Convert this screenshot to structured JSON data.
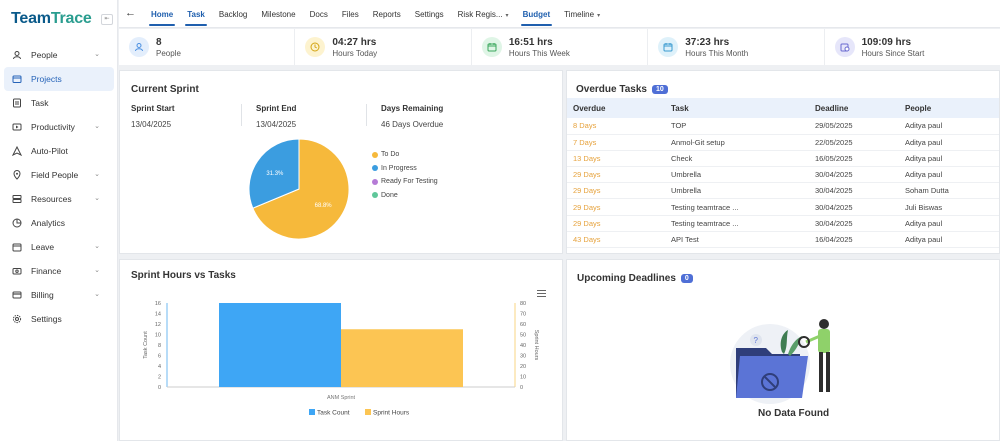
{
  "brand": {
    "name_part1": "Team",
    "name_part2": "Trace"
  },
  "sidebar": {
    "items": [
      {
        "label": "People",
        "icon": "people-icon",
        "chevron": true,
        "active": false
      },
      {
        "label": "Projects",
        "icon": "projects-icon",
        "chevron": false,
        "active": true
      },
      {
        "label": "Task",
        "icon": "task-icon",
        "chevron": false,
        "active": false
      },
      {
        "label": "Productivity",
        "icon": "productivity-icon",
        "chevron": true,
        "active": false
      },
      {
        "label": "Auto-Pilot",
        "icon": "autopilot-icon",
        "chevron": false,
        "active": false
      },
      {
        "label": "Field People",
        "icon": "field-people-icon",
        "chevron": true,
        "active": false
      },
      {
        "label": "Resources",
        "icon": "resources-icon",
        "chevron": true,
        "active": false
      },
      {
        "label": "Analytics",
        "icon": "analytics-icon",
        "chevron": false,
        "active": false
      },
      {
        "label": "Leave",
        "icon": "leave-icon",
        "chevron": true,
        "active": false
      },
      {
        "label": "Finance",
        "icon": "finance-icon",
        "chevron": true,
        "active": false
      },
      {
        "label": "Billing",
        "icon": "billing-icon",
        "chevron": true,
        "active": false
      },
      {
        "label": "Settings",
        "icon": "settings-icon",
        "chevron": false,
        "active": false
      }
    ]
  },
  "topbar": {
    "tabs": [
      {
        "label": "Home",
        "active": true,
        "dropdown": false
      },
      {
        "label": "Task",
        "active": true,
        "dropdown": false
      },
      {
        "label": "Backlog",
        "active": false,
        "dropdown": false
      },
      {
        "label": "Milestone",
        "active": false,
        "dropdown": false
      },
      {
        "label": "Docs",
        "active": false,
        "dropdown": false
      },
      {
        "label": "Files",
        "active": false,
        "dropdown": false
      },
      {
        "label": "Reports",
        "active": false,
        "dropdown": false
      },
      {
        "label": "Settings",
        "active": false,
        "dropdown": false
      },
      {
        "label": "Risk Regis...",
        "active": false,
        "dropdown": true
      },
      {
        "label": "Budget",
        "active": true,
        "dropdown": false
      },
      {
        "label": "Timeline",
        "active": false,
        "dropdown": true
      }
    ]
  },
  "stats": [
    {
      "value": "8",
      "label": "People",
      "icon": "people-icon",
      "bg": "#e3eefc",
      "fg": "#4a8fe0"
    },
    {
      "value": "04:27 hrs",
      "label": "Hours Today",
      "icon": "clock-icon",
      "bg": "#fdf3cf",
      "fg": "#d4a514"
    },
    {
      "value": "16:51 hrs",
      "label": "Hours This Week",
      "icon": "calendar-icon",
      "bg": "#dff5e6",
      "fg": "#3aa65c"
    },
    {
      "value": "37:23 hrs",
      "label": "Hours This Month",
      "icon": "calendar-icon",
      "bg": "#def1fa",
      "fg": "#3a9bd0"
    },
    {
      "value": "109:09 hrs",
      "label": "Hours Since Start",
      "icon": "calendar-clock-icon",
      "bg": "#e6e6fa",
      "fg": "#6a6ad0"
    }
  ],
  "current_sprint": {
    "title": "Current Sprint",
    "start_label": "Sprint Start",
    "start_value": "13/04/2025",
    "end_label": "Sprint End",
    "end_value": "13/04/2025",
    "remaining_label": "Days Remaining",
    "remaining_value": "46 Days Overdue",
    "pie": {
      "slices": [
        {
          "label": "To Do",
          "value": 68.8,
          "text": "68.8%",
          "color": "#f6b93b"
        },
        {
          "label": "In Progress",
          "value": 31.3,
          "text": "31.3%",
          "color": "#3b9de0"
        },
        {
          "label": "Ready For Testing",
          "value": 0,
          "text": "",
          "color": "#b57bd6"
        },
        {
          "label": "Done",
          "value": 0,
          "text": "",
          "color": "#5fc79a"
        }
      ]
    }
  },
  "overdue": {
    "title": "Overdue Tasks",
    "count": "10",
    "columns": [
      "Overdue",
      "Task",
      "Deadline",
      "People"
    ],
    "rows": [
      [
        "8 Days",
        "TOP",
        "29/05/2025",
        "Aditya paul"
      ],
      [
        "7 Days",
        "Anmol-Git setup",
        "22/05/2025",
        "Aditya paul"
      ],
      [
        "13 Days",
        "Check",
        "16/05/2025",
        "Aditya paul"
      ],
      [
        "29 Days",
        "Umbrella",
        "30/04/2025",
        "Aditya paul"
      ],
      [
        "29 Days",
        "Umbrella",
        "30/04/2025",
        "Soham Dutta"
      ],
      [
        "29 Days",
        "Testing teamtrace ...",
        "30/04/2025",
        "Juli Biswas"
      ],
      [
        "29 Days",
        "Testing teamtrace ...",
        "30/04/2025",
        "Aditya paul"
      ],
      [
        "43 Days",
        "API Test",
        "16/04/2025",
        "Aditya paul"
      ]
    ]
  },
  "sprint_chart": {
    "title": "Sprint Hours vs Tasks"
  },
  "chart_data": {
    "type": "bar",
    "categories": [
      "ANM Sprint"
    ],
    "series": [
      {
        "name": "Task Count",
        "values": [
          16
        ],
        "color": "#3ea6f5",
        "axis": "left"
      },
      {
        "name": "Sprint Hours",
        "values": [
          55
        ],
        "color": "#fcc553",
        "axis": "right"
      }
    ],
    "ylabel": "Task Count",
    "y2label": "Sprint Hours",
    "ylim": [
      0,
      16
    ],
    "y2lim": [
      0,
      80
    ],
    "yticks": [
      "16",
      "14",
      "12",
      "10",
      "8",
      "6",
      "4",
      "2",
      "0"
    ],
    "y2ticks": [
      "80",
      "70",
      "60",
      "50",
      "40",
      "30",
      "20",
      "10",
      "0"
    ],
    "legend": "bottom"
  },
  "upcoming": {
    "title": "Upcoming Deadlines",
    "count": "0",
    "empty_text": "No Data Found"
  }
}
